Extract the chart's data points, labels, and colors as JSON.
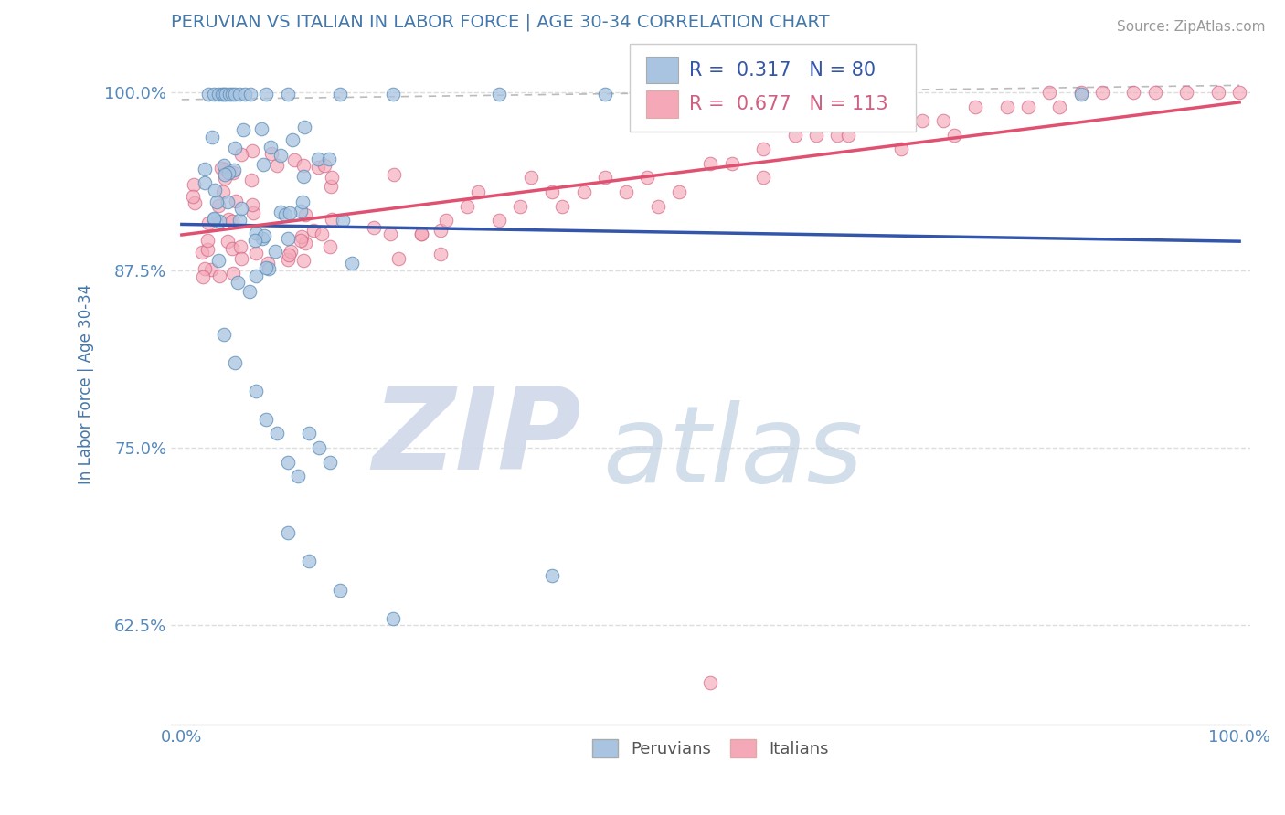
{
  "title": "PERUVIAN VS ITALIAN IN LABOR FORCE | AGE 30-34 CORRELATION CHART",
  "ylabel": "In Labor Force | Age 30-34",
  "source": "Source: ZipAtlas.com",
  "xlim": [
    -0.01,
    1.01
  ],
  "ylim": [
    0.555,
    1.035
  ],
  "yticks": [
    0.625,
    0.75,
    0.875,
    1.0
  ],
  "ytick_labels": [
    "62.5%",
    "75.0%",
    "87.5%",
    "100.0%"
  ],
  "xtick_labels": [
    "0.0%",
    "100.0%"
  ],
  "xticks": [
    0.0,
    1.0
  ],
  "peruvian_R": 0.317,
  "peruvian_N": 80,
  "italian_R": 0.677,
  "italian_N": 113,
  "blue_scatter_color": "#A8C4E0",
  "blue_edge_color": "#5B8DB8",
  "pink_scatter_color": "#F4A8B8",
  "pink_edge_color": "#D06080",
  "blue_line_color": "#3355AA",
  "pink_line_color": "#E05070",
  "dash_color": "#AAAAAA",
  "legend_blue_fill": "#A8C4E0",
  "legend_pink_fill": "#F4A8B8",
  "title_color": "#4477AA",
  "ylabel_color": "#4477AA",
  "tick_color": "#5588BB",
  "source_color": "#999999",
  "grid_color": "#DDDDDD",
  "bg_color": "#FFFFFF",
  "watermark_zip_color": "#D0D8E8",
  "watermark_atlas_color": "#C0D0E0"
}
